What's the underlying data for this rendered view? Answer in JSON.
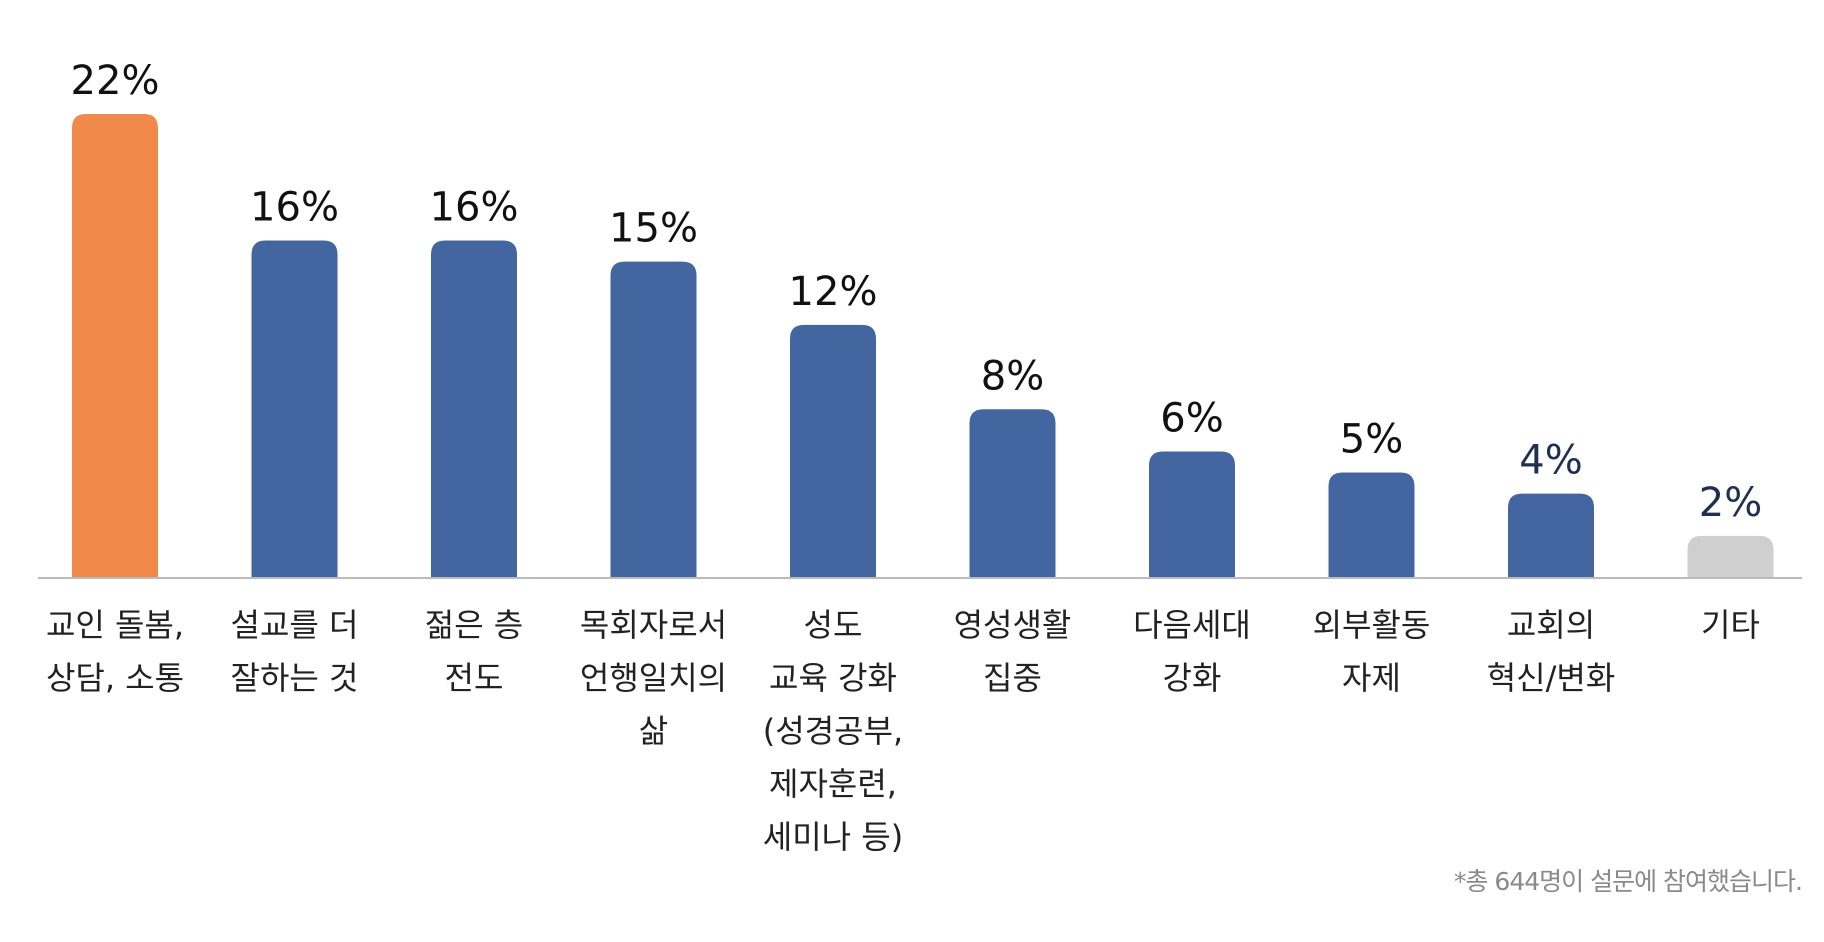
{
  "chart_data": {
    "type": "bar",
    "categories": [
      "교인 돌봄,\n상담, 소통",
      "설교를 더\n잘하는 것",
      "젊은 층\n전도",
      "목회자로서\n언행일치의\n삶",
      "성도\n교육 강화\n(성경공부,\n제자훈련,\n세미나 등)",
      "영성생활\n집중",
      "다음세대\n강화",
      "외부활동\n자제",
      "교회의\n혁신/변화",
      "기타"
    ],
    "values": [
      22,
      16,
      16,
      15,
      12,
      8,
      6,
      5,
      4,
      2
    ],
    "value_labels": [
      "22%",
      "16%",
      "16%",
      "15%",
      "12%",
      "8%",
      "6%",
      "5%",
      "4%",
      "2%"
    ],
    "bar_colors": [
      "#F0894A",
      "#4466A0",
      "#4466A0",
      "#4466A0",
      "#4466A0",
      "#4466A0",
      "#4466A0",
      "#4466A0",
      "#4466A0",
      "#CFCFCF"
    ],
    "label_colors": [
      "#111111",
      "#111111",
      "#111111",
      "#111111",
      "#111111",
      "#111111",
      "#111111",
      "#111111",
      "#1f3050",
      "#1f3050"
    ],
    "axis_color": "#BBBBBB",
    "ylim": [
      0,
      22
    ],
    "grid": false,
    "legend": "none",
    "title": "",
    "xlabel": "",
    "ylabel": ""
  },
  "footnote": "*총 644명이 설문에 참여했습니다."
}
